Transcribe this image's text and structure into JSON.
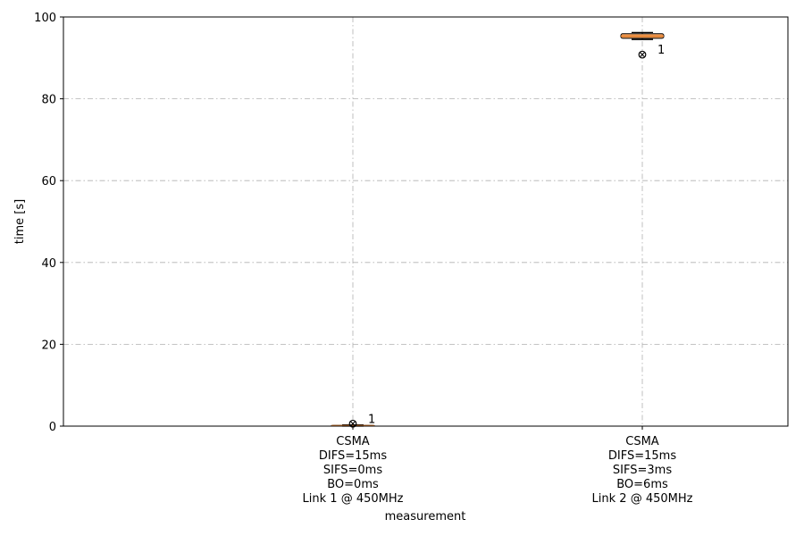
{
  "chart_data": {
    "type": "box",
    "xlabel": "measurement",
    "ylabel": "time [s]",
    "ylim": [
      0,
      100
    ],
    "yticks": [
      0,
      20,
      40,
      60,
      80,
      100
    ],
    "grid": true,
    "box_color": "#f4a460",
    "median_color": "#e07b2a",
    "categories": [
      [
        "CSMA",
        "DIFS=15ms",
        "SIFS=0ms",
        "BO=0ms",
        "Link 1 @ 450MHz"
      ],
      [
        "CSMA",
        "DIFS=15ms",
        "SIFS=3ms",
        "BO=6ms",
        "Link 2 @ 450MHz"
      ]
    ],
    "boxes": [
      {
        "whisker_low": 0.0,
        "q1": 0.05,
        "median": 0.1,
        "q3": 0.2,
        "whisker_high": 0.3,
        "outliers": [
          0.6
        ],
        "outlier_label": "1"
      },
      {
        "whisker_low": 94.5,
        "q1": 94.8,
        "median": 95.3,
        "q3": 95.9,
        "whisker_high": 96.2,
        "outliers": [
          90.8
        ],
        "outlier_label": "1"
      }
    ]
  }
}
